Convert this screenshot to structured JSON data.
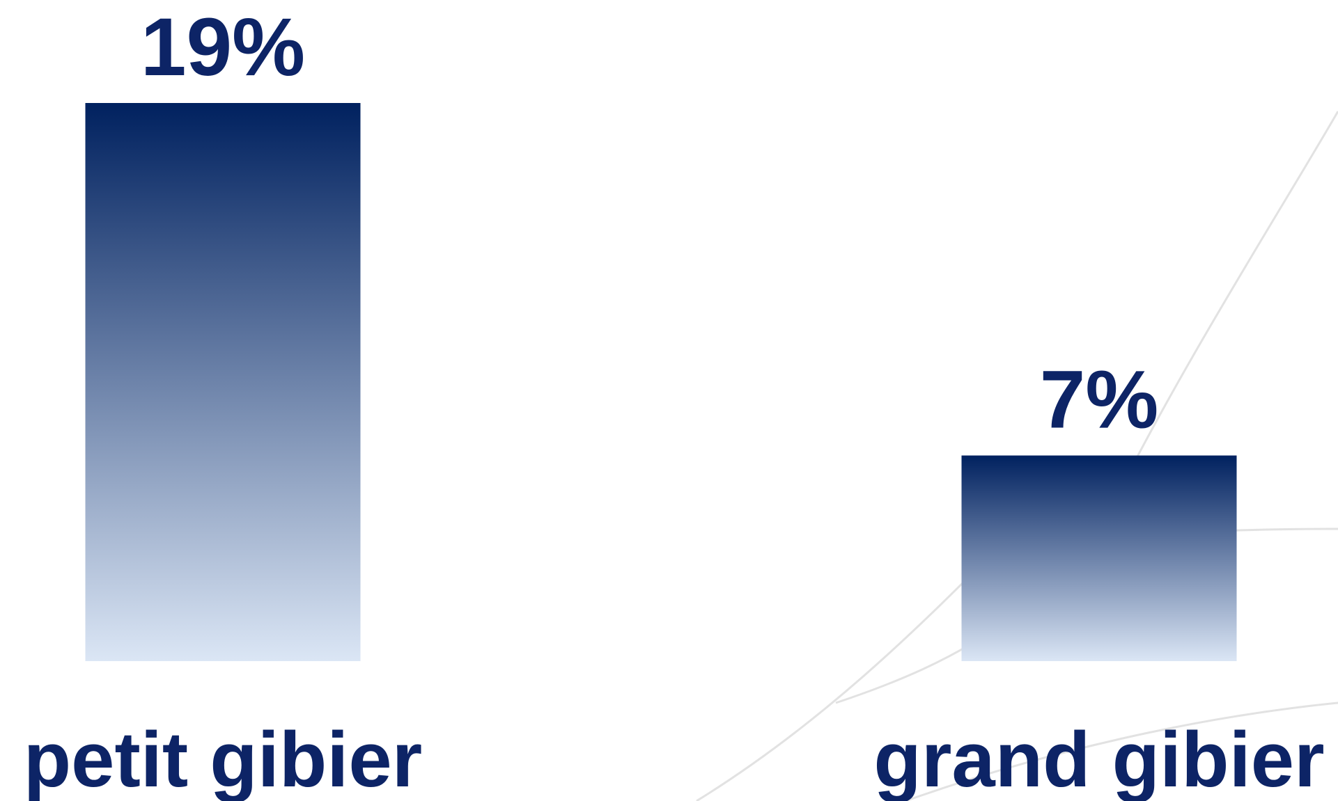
{
  "chart_data": {
    "type": "bar",
    "categories": [
      "petit gibier",
      "grand gibier"
    ],
    "values": [
      19,
      7
    ],
    "value_labels": [
      "19%",
      "7%"
    ],
    "unit": "%",
    "ylim": [
      0,
      19
    ],
    "grid": false,
    "legend": "none",
    "title": "",
    "xlabel": "",
    "ylabel": ""
  },
  "colors": {
    "bar_top": "#00215f",
    "bar_bottom": "#dbe6f5",
    "text": "#0d2466",
    "decoration": "#e2e2e2"
  }
}
